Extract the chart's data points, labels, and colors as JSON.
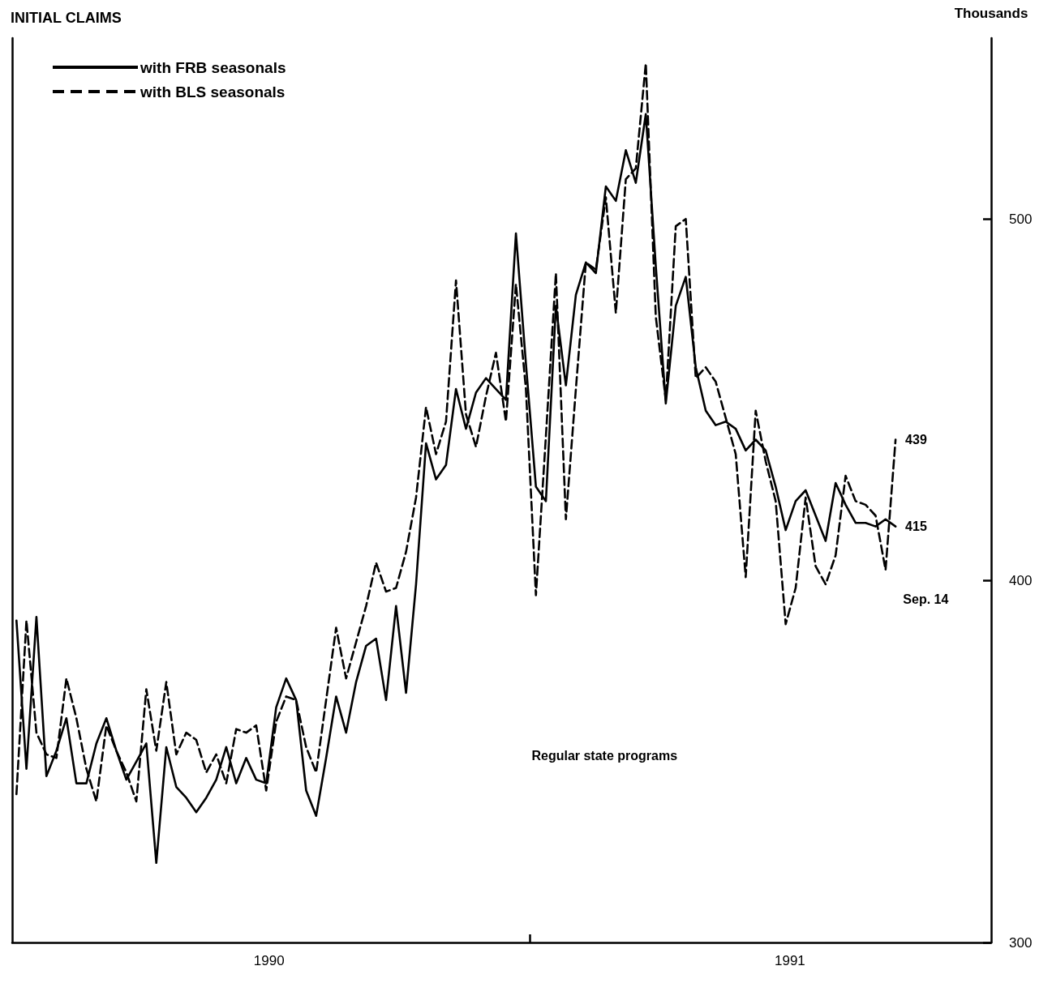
{
  "chart_data": {
    "type": "line",
    "title": "INITIAL CLAIMS",
    "ylabel": "Thousands",
    "x": [
      "1990-01-06",
      "1990-01-13",
      "1990-01-20",
      "1990-01-27",
      "1990-02-03",
      "1990-02-10",
      "1990-02-17",
      "1990-02-24",
      "1990-03-03",
      "1990-03-10",
      "1990-03-17",
      "1990-03-24",
      "1990-03-31",
      "1990-04-07",
      "1990-04-14",
      "1990-04-21",
      "1990-04-28",
      "1990-05-05",
      "1990-05-12",
      "1990-05-19",
      "1990-05-26",
      "1990-06-02",
      "1990-06-09",
      "1990-06-16",
      "1990-06-23",
      "1990-06-30",
      "1990-07-07",
      "1990-07-14",
      "1990-07-21",
      "1990-07-28",
      "1990-08-04",
      "1990-08-11",
      "1990-08-18",
      "1990-08-25",
      "1990-09-01",
      "1990-09-08",
      "1990-09-15",
      "1990-09-22",
      "1990-09-29",
      "1990-10-06",
      "1990-10-13",
      "1990-10-20",
      "1990-10-27",
      "1990-11-03",
      "1990-11-10",
      "1990-11-17",
      "1990-11-24",
      "1990-12-01",
      "1990-12-08",
      "1990-12-15",
      "1990-12-22",
      "1990-12-29",
      "1991-01-05",
      "1991-01-12",
      "1991-01-19",
      "1991-01-26",
      "1991-02-02",
      "1991-02-09",
      "1991-02-16",
      "1991-02-23",
      "1991-03-02",
      "1991-03-09",
      "1991-03-16",
      "1991-03-23",
      "1991-03-30",
      "1991-04-06",
      "1991-04-13",
      "1991-04-20",
      "1991-04-27",
      "1991-05-04",
      "1991-05-11",
      "1991-05-18",
      "1991-05-25",
      "1991-06-01",
      "1991-06-08",
      "1991-06-15",
      "1991-06-22",
      "1991-06-29",
      "1991-07-06",
      "1991-07-13",
      "1991-07-20",
      "1991-07-27",
      "1991-08-03",
      "1991-08-10",
      "1991-08-17",
      "1991-08-24",
      "1991-08-31",
      "1991-09-07",
      "1991-09-14"
    ],
    "series": [
      {
        "name": "with FRB seasonals",
        "color": "#000000",
        "line_style": "solid",
        "values": [
          389,
          348,
          390,
          346,
          353,
          362,
          344,
          344,
          355,
          362,
          353,
          345,
          350,
          355,
          322,
          354,
          343,
          340,
          336,
          340,
          345,
          354,
          344,
          351,
          345,
          344,
          365,
          373,
          367,
          342,
          335,
          351,
          368,
          358,
          372,
          382,
          384,
          367,
          393,
          369,
          399,
          438,
          428,
          432,
          453,
          442,
          452,
          456,
          453,
          450,
          496,
          460,
          426,
          422,
          476,
          454,
          479,
          488,
          485,
          509,
          505,
          519,
          510,
          529,
          487,
          449,
          476,
          484,
          459,
          447,
          443,
          444,
          442,
          436,
          439,
          436,
          426,
          414,
          422,
          425,
          418,
          411,
          427,
          421,
          416,
          416,
          415,
          417,
          415
        ]
      },
      {
        "name": "with BLS seasonals",
        "color": "#000000",
        "line_style": "dashed",
        "values": [
          341,
          389,
          358,
          352,
          351,
          373,
          362,
          348,
          339,
          360,
          353,
          347,
          339,
          370,
          353,
          372,
          352,
          358,
          356,
          347,
          352,
          344,
          359,
          358,
          360,
          342,
          361,
          368,
          367,
          354,
          347,
          367,
          387,
          373,
          383,
          393,
          405,
          397,
          398,
          408,
          423,
          448,
          435,
          444,
          483,
          446,
          437,
          451,
          463,
          444,
          482,
          453,
          396,
          440,
          485,
          417,
          453,
          488,
          486,
          506,
          474,
          511,
          514,
          543,
          473,
          450,
          498,
          500,
          456,
          459,
          455,
          445,
          435,
          401,
          447,
          433,
          422,
          388,
          398,
          423,
          404,
          399,
          407,
          429,
          422,
          421,
          418,
          403,
          439
        ]
      }
    ],
    "xlim": [
      "1990-01-03",
      "1991-11-20"
    ],
    "xticks": [
      {
        "value": "1990-07-02",
        "label": "1990"
      },
      {
        "value": "1991-01-01",
        "label": null
      },
      {
        "value": "1991-07-02",
        "label": "1991"
      }
    ],
    "ylim": [
      300,
      550
    ],
    "yticks": [
      300,
      400,
      500
    ],
    "grid": false,
    "legend": "top left",
    "marker": "none",
    "annotations": [
      "Regular state programs",
      {
        "text": "439",
        "x": "1991-09-14",
        "y": 439
      },
      {
        "text": "415",
        "x": "1991-09-14",
        "y": 415
      },
      "Sep. 14"
    ]
  }
}
